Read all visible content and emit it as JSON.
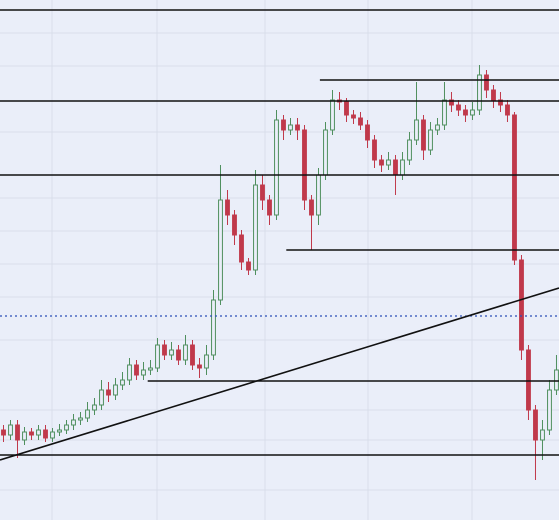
{
  "chart_data": {
    "type": "candlestick",
    "xlim": [
      -0.5,
      79.36
    ],
    "ylim": [
      0,
      520
    ],
    "up_color": "#4f8f5e",
    "down_color": "#c0394b",
    "open": [
      90,
      85,
      95,
      80,
      88,
      85,
      90,
      82,
      88,
      90,
      95,
      100,
      102,
      110,
      115,
      130,
      125,
      135,
      140,
      155,
      145,
      150,
      152,
      175,
      165,
      170,
      160,
      175,
      155,
      152,
      165,
      220,
      320,
      305,
      285,
      258,
      250,
      335,
      320,
      305,
      400,
      390,
      395,
      390,
      320,
      305,
      345,
      390,
      420,
      418,
      405,
      402,
      395,
      380,
      360,
      355,
      360,
      345,
      360,
      380,
      400,
      370,
      390,
      395,
      420,
      415,
      410,
      405,
      410,
      445,
      430,
      420,
      415,
      405,
      260,
      170,
      110,
      80,
      90,
      130
    ],
    "high": [
      95,
      100,
      100,
      93,
      92,
      95,
      95,
      92,
      96,
      100,
      106,
      108,
      118,
      122,
      140,
      138,
      142,
      148,
      162,
      160,
      158,
      160,
      182,
      180,
      178,
      175,
      185,
      180,
      162,
      175,
      230,
      355,
      330,
      310,
      290,
      262,
      350,
      345,
      325,
      410,
      405,
      402,
      402,
      395,
      325,
      352,
      398,
      430,
      428,
      422,
      410,
      408,
      400,
      385,
      365,
      368,
      365,
      368,
      388,
      438,
      405,
      398,
      402,
      438,
      428,
      420,
      415,
      418,
      455,
      450,
      435,
      428,
      420,
      408,
      265,
      175,
      115,
      100,
      140,
      165
    ],
    "low": [
      78,
      80,
      62,
      75,
      80,
      80,
      78,
      78,
      84,
      86,
      90,
      95,
      98,
      105,
      110,
      118,
      120,
      130,
      135,
      140,
      140,
      145,
      148,
      160,
      160,
      155,
      155,
      150,
      142,
      145,
      160,
      215,
      295,
      275,
      250,
      245,
      245,
      310,
      295,
      300,
      380,
      385,
      380,
      310,
      270,
      295,
      340,
      385,
      410,
      398,
      396,
      390,
      372,
      352,
      348,
      350,
      325,
      340,
      355,
      375,
      360,
      365,
      385,
      390,
      408,
      404,
      398,
      400,
      405,
      422,
      412,
      408,
      398,
      255,
      160,
      100,
      40,
      60,
      85,
      125
    ],
    "close": [
      85,
      95,
      80,
      88,
      85,
      90,
      82,
      88,
      90,
      95,
      100,
      102,
      110,
      115,
      130,
      125,
      135,
      140,
      155,
      145,
      150,
      152,
      175,
      165,
      170,
      160,
      175,
      155,
      152,
      165,
      220,
      320,
      305,
      285,
      258,
      250,
      335,
      320,
      305,
      400,
      390,
      395,
      390,
      320,
      305,
      345,
      390,
      420,
      418,
      405,
      402,
      395,
      380,
      360,
      355,
      360,
      345,
      360,
      380,
      400,
      370,
      390,
      395,
      420,
      415,
      410,
      405,
      410,
      445,
      430,
      420,
      415,
      405,
      260,
      170,
      110,
      80,
      90,
      130,
      150
    ],
    "levels": [
      {
        "value": 510,
        "start": -0.5
      },
      {
        "value": 440,
        "start": 45.2
      },
      {
        "value": 419,
        "start": -0.5
      },
      {
        "value": 345,
        "start": -0.5
      },
      {
        "value": 270,
        "start": 40.4
      },
      {
        "value": 139,
        "start": 20.6
      },
      {
        "value": 65,
        "start": -0.5
      }
    ],
    "current_price": 204,
    "trendline": {
      "x": [
        -0.5,
        79.36
      ],
      "y": [
        60,
        232
      ]
    }
  }
}
